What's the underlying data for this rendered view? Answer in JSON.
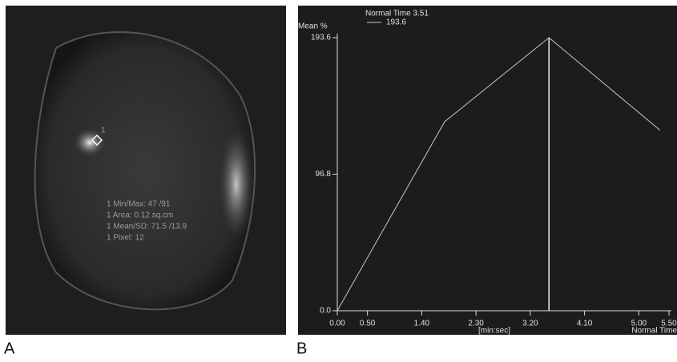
{
  "panel_labels": [
    "A",
    "B"
  ],
  "image_annotations": {
    "roi_label": "1",
    "lines": [
      "1 Min/Max: 47 /91",
      "1 Area: 0.12 sq.cm",
      "1 Mean/SD: 71.5 /13.9",
      "1 Pixel: 12"
    ]
  },
  "chart_data": {
    "type": "line",
    "title": "Normal Time 3.51",
    "cursor_time": 3.51,
    "y_label": "Mean %",
    "x_label": "[min:sec]",
    "x_end_label": "Normal Time",
    "x": [
      0,
      1.78,
      3.51,
      5.35
    ],
    "series": [
      {
        "name": "193.6",
        "color": "#c8c8c8",
        "values": [
          0,
          134,
          193.6,
          128
        ]
      }
    ],
    "xlim": [
      0,
      5.5
    ],
    "xticks": [
      {
        "value": 0,
        "label": "0.00"
      },
      {
        "value": 0.5,
        "label": "0.50"
      },
      {
        "value": 1.4,
        "label": "1.40"
      },
      {
        "value": 2.3,
        "label": "2.30"
      },
      {
        "value": 3.2,
        "label": "3.20"
      },
      {
        "value": 4.1,
        "label": "4.10"
      },
      {
        "value": 5,
        "label": "5.00"
      },
      {
        "value": 5.5,
        "label": "5.50"
      }
    ],
    "ylim": [
      0,
      193.6
    ],
    "yticks": [
      {
        "value": 0,
        "label": "0.0"
      },
      96.8,
      193.6
    ],
    "grid": false
  }
}
